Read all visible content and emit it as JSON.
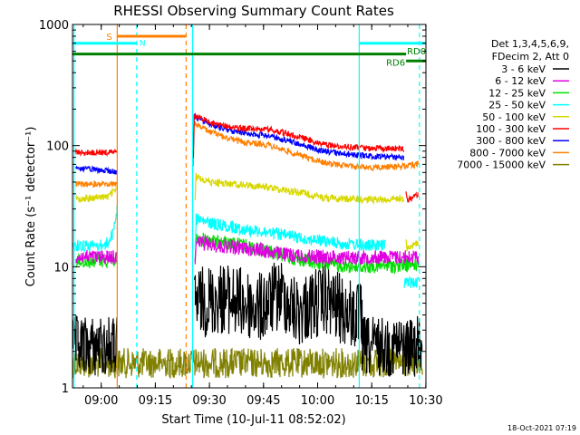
{
  "chart_data": {
    "type": "line",
    "title": "RHESSI Observing Summary Count Rates",
    "xlabel": "Start Time (10-Jul-11 08:52:02)",
    "ylabel": "Count Rate (s⁻¹ detector⁻¹)",
    "ylog": true,
    "ylim": [
      1,
      1000
    ],
    "xlim_minutes": [
      0,
      98
    ],
    "x_ticks": [
      {
        "t": 7.97,
        "label": "09:00"
      },
      {
        "t": 22.97,
        "label": "09:15"
      },
      {
        "t": 37.97,
        "label": "09:30"
      },
      {
        "t": 52.97,
        "label": "09:45"
      },
      {
        "t": 67.97,
        "label": "10:00"
      },
      {
        "t": 82.97,
        "label": "10:15"
      },
      {
        "t": 97.97,
        "label": "10:30"
      }
    ],
    "y_ticks": [
      {
        "v": 1,
        "label": "1"
      },
      {
        "v": 10,
        "label": "10"
      },
      {
        "v": 100,
        "label": "100"
      },
      {
        "v": 1000,
        "label": "1000"
      }
    ],
    "legend_header": [
      "Det 1,3,4,5,6,9,",
      "FDecim 2, Att 0"
    ],
    "legend_position": "right",
    "series": [
      {
        "name": "3 - 6 keV",
        "color": "#000000",
        "segments": [
          {
            "t": [
              0,
              12.4
            ],
            "v": [
              2.2,
              2.2
            ],
            "noise": 0.5
          },
          {
            "t": [
              33.8,
              42,
              52,
              58,
              62,
              66,
              70,
              74,
              80.3
            ],
            "v": [
              5,
              5.5,
              4.5,
              6,
              4.2,
              4.8,
              5.3,
              4.5,
              3.6
            ],
            "noise": 0.6
          },
          {
            "t": [
              80.3,
              97
            ],
            "v": [
              2.2,
              2.2
            ],
            "noise": 0.5
          }
        ]
      },
      {
        "name": "6 - 12 keV",
        "color": "#e000e0",
        "segments": [
          {
            "t": [
              1,
              12.4
            ],
            "v": [
              12,
              12
            ],
            "noise": 0.12
          },
          {
            "t": [
              34,
              40,
              50,
              60,
              70,
              80,
              90,
              96
            ],
            "v": [
              16,
              15,
              14,
              12.5,
              12,
              12,
              12,
              12
            ],
            "noise": 0.12
          }
        ]
      },
      {
        "name": "12 - 25 keV",
        "color": "#00e000",
        "segments": [
          {
            "t": [
              1,
              12.4
            ],
            "v": [
              11,
              11.5
            ],
            "noise": 0.12
          },
          {
            "t": [
              34,
              40,
              50,
              60,
              70,
              80,
              90,
              96
            ],
            "v": [
              17,
              16,
              14.5,
              12,
              10.5,
              10,
              10.2,
              10.5
            ],
            "noise": 0.12
          }
        ]
      },
      {
        "name": "25 - 50 keV",
        "color": "#00ffff",
        "segments": [
          {
            "t": [
              0,
              9,
              11,
              12.4
            ],
            "v": [
              15,
              15,
              18,
              30
            ],
            "noise": 0.1
          },
          {
            "t": [
              34,
              38,
              45,
              55,
              65,
              75,
              82,
              87
            ],
            "v": [
              25,
              23,
              21,
              19,
              17,
              15.5,
              15,
              15
            ],
            "noise": 0.1
          },
          {
            "t": [
              92,
              96
            ],
            "v": [
              7.5,
              7.5
            ],
            "noise": 0.1
          }
        ]
      },
      {
        "name": "50 - 100 keV",
        "color": "#d8d800",
        "segments": [
          {
            "t": [
              1,
              10,
              12.4
            ],
            "v": [
              36,
              38,
              45
            ],
            "noise": 0.06
          },
          {
            "t": [
              34,
              38,
              45,
              55,
              65,
              70,
              80,
              88,
              92
            ],
            "v": [
              56,
              50,
              48,
              45,
              40,
              37,
              36,
              36,
              37
            ],
            "noise": 0.06
          },
          {
            "t": [
              92.5,
              96
            ],
            "v": [
              14,
              16
            ],
            "noise": 0.06
          }
        ]
      },
      {
        "name": "100 - 300 keV",
        "color": "#ff0000",
        "segments": [
          {
            "t": [
              1,
              12.4
            ],
            "v": [
              88,
              88
            ],
            "noise": 0.05
          },
          {
            "t": [
              33.5,
              38,
              45,
              55,
              62,
              68,
              72,
              82,
              90,
              92
            ],
            "v": [
              180,
              155,
              140,
              135,
              120,
              105,
              100,
              95,
              95,
              95
            ],
            "noise": 0.05
          },
          {
            "t": [
              92.5,
              96
            ],
            "v": [
              35,
              40
            ],
            "noise": 0.05
          }
        ]
      },
      {
        "name": "300 - 800 keV",
        "color": "#0000ff",
        "segments": [
          {
            "t": [
              1,
              10,
              12.4
            ],
            "v": [
              65,
              62,
              60
            ],
            "noise": 0.05
          },
          {
            "t": [
              33.5,
              38,
              45,
              55,
              62,
              68,
              72,
              82,
              90,
              92
            ],
            "v": [
              175,
              150,
              130,
              120,
              105,
              92,
              88,
              82,
              80,
              80
            ],
            "noise": 0.05
          }
        ]
      },
      {
        "name": "800 - 7000 keV",
        "color": "#ff8000",
        "segments": [
          {
            "t": [
              1,
              12.4
            ],
            "v": [
              48,
              48
            ],
            "noise": 0.05
          },
          {
            "t": [
              33.5,
              38,
              45,
              55,
              62,
              68,
              72,
              82,
              90,
              96
            ],
            "v": [
              155,
              130,
              110,
              100,
              85,
              75,
              70,
              66,
              67,
              70
            ],
            "noise": 0.05
          }
        ]
      },
      {
        "name": "7000 - 15000 keV",
        "color": "#808000",
        "segments": [
          {
            "t": [
              0,
              97
            ],
            "v": [
              1.6,
              1.6
            ],
            "noise": 0.25
          }
        ]
      }
    ],
    "status_bars": [
      {
        "label": "S",
        "color": "#ff8000",
        "t": [
          12.4,
          31.5
        ],
        "v": 800
      },
      {
        "label": "N",
        "color": "#00ffff",
        "t": [
          0,
          17.8
        ],
        "v": 700
      },
      {
        "label": "N",
        "color": "#00ffff",
        "t": [
          79.5,
          98
        ],
        "v": 700
      },
      {
        "label": "RD6",
        "color": "#008000",
        "t": [
          0,
          92.5
        ],
        "v": 570
      },
      {
        "label": "RD0",
        "color": "#008000",
        "t": [
          92.5,
          98
        ],
        "v": 500
      }
    ],
    "vertical_markers": [
      {
        "t": 0.4,
        "color": "#00ffff",
        "style": "solid"
      },
      {
        "t": 12.4,
        "color": "#ff8000",
        "style": "solid"
      },
      {
        "t": 17.8,
        "color": "#00ffff",
        "style": "dashed"
      },
      {
        "t": 31.5,
        "color": "#ff8000",
        "style": "dashed"
      },
      {
        "t": 33.3,
        "color": "#00ffff",
        "style": "solid"
      },
      {
        "t": 79.5,
        "color": "#00ffff",
        "style": "solid"
      },
      {
        "t": 96.2,
        "color": "#00ffff",
        "style": "dashed"
      }
    ],
    "timestamp": "18-Oct-2021 07:19"
  }
}
